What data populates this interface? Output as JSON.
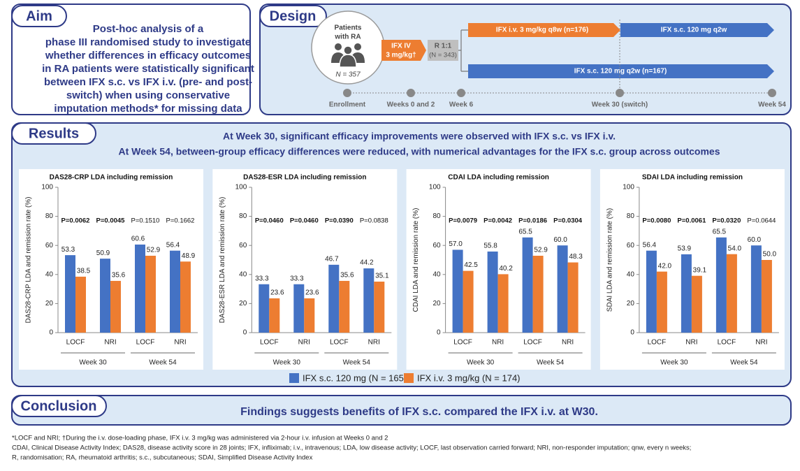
{
  "aim": {
    "heading": "Aim",
    "lines": [
      "Post-hoc analysis of a",
      "phase III randomised study to investigate",
      "whether differences in efficacy outcomes",
      "in RA patients were statistically significant",
      "between IFX s.c. vs IFX i.v. (pre- and post-",
      "switch) when using conservative",
      "imputation methods* for missing data"
    ]
  },
  "design": {
    "heading": "Design",
    "patients": {
      "lines": [
        "Patients",
        "with RA"
      ],
      "n": "N = 357"
    },
    "induction": [
      "IFX IV",
      "3 mg/kg†"
    ],
    "randomisation": [
      "R 1:1",
      "(N = 343)"
    ],
    "arms": [
      "IFX i.v. 3 mg/kg q8w (n=176)",
      "IFX s.c. 120 mg q2w",
      "IFX s.c. 120 mg q2w (n=167)"
    ],
    "timeline": [
      "Enrollment",
      "Weeks 0 and 2",
      "Week 6",
      "Week 30 (switch)",
      "Week 54"
    ]
  },
  "results": {
    "heading": "Results",
    "summary": [
      "At Week 30, significant efficacy improvements were observed with IFX s.c. vs IFX i.v.",
      "At Week 54, between-group efficacy differences were reduced, with numerical advantages for the IFX s.c. group across outcomes"
    ]
  },
  "chart_data": [
    {
      "type": "bar",
      "title": "DAS28-CRP LDA including remission",
      "y_label": "DAS28-CRP LDA and remission rate (%)",
      "categories": [
        "LOCF",
        "NRI",
        "LOCF",
        "NRI"
      ],
      "groups": [
        "Week 30",
        "Week 54"
      ],
      "ylim": [
        0,
        100
      ],
      "yticks": [
        0,
        20,
        40,
        60,
        80,
        100
      ],
      "series": [
        {
          "name": "IFX s.c. 120 mg (N = 165)",
          "color": "#4472c4",
          "values": [
            53.3,
            50.9,
            60.6,
            56.4
          ],
          "value_labels": [
            "53.3",
            "50.9",
            "60.6",
            "56.4"
          ]
        },
        {
          "name": "IFX i.v. 3 mg/kg (N = 174)",
          "color": "#ed7d31",
          "values": [
            38.5,
            35.6,
            52.9,
            48.9
          ],
          "value_labels": [
            "38.5",
            "35.6",
            "52.9",
            "48.9"
          ]
        }
      ],
      "annotations": [
        {
          "text": "P=0.0062",
          "bold": true
        },
        {
          "text": "P=0.0045",
          "bold": true
        },
        {
          "text": "P=0.1510",
          "bold": false
        },
        {
          "text": "P=0.1662",
          "bold": false
        }
      ]
    },
    {
      "type": "bar",
      "title": "DAS28-ESR LDA including remission",
      "y_label": "DAS28-ESR LDA and remission rate (%)",
      "categories": [
        "LOCF",
        "NRI",
        "LOCF",
        "NRI"
      ],
      "groups": [
        "Week 30",
        "Week 54"
      ],
      "ylim": [
        0,
        100
      ],
      "yticks": [
        0,
        20,
        40,
        60,
        80,
        100
      ],
      "series": [
        {
          "color": "#4472c4",
          "values": [
            33.3,
            33.3,
            46.7,
            44.2
          ],
          "value_labels": [
            "33.3",
            "33.3",
            "46.7",
            "44.2"
          ]
        },
        {
          "color": "#ed7d31",
          "values": [
            23.6,
            23.6,
            35.6,
            35.1
          ],
          "value_labels": [
            "23.6",
            "23.6",
            "35.6",
            "35.1"
          ]
        }
      ],
      "annotations": [
        {
          "text": "P=0.0460",
          "bold": true
        },
        {
          "text": "P=0.0460",
          "bold": true
        },
        {
          "text": "P=0.0390",
          "bold": true
        },
        {
          "text": "P=0.0838",
          "bold": false
        }
      ]
    },
    {
      "type": "bar",
      "title": "CDAI LDA including remission",
      "y_label": "CDAI LDA and remission rate (%)",
      "categories": [
        "LOCF",
        "NRI",
        "LOCF",
        "NRI"
      ],
      "groups": [
        "Week 30",
        "Week 54"
      ],
      "ylim": [
        0,
        100
      ],
      "yticks": [
        0,
        20,
        40,
        60,
        80,
        100
      ],
      "series": [
        {
          "color": "#4472c4",
          "values": [
            57.0,
            55.8,
            65.5,
            60.0
          ],
          "value_labels": [
            "57.0",
            "55.8",
            "65.5",
            "60.0"
          ]
        },
        {
          "color": "#ed7d31",
          "values": [
            42.5,
            40.2,
            52.9,
            48.3
          ],
          "value_labels": [
            "42.5",
            "40.2",
            "52.9",
            "48.3"
          ]
        }
      ],
      "annotations": [
        {
          "text": "P=0.0079",
          "bold": true
        },
        {
          "text": "P=0.0042",
          "bold": true
        },
        {
          "text": "P=0.0186",
          "bold": true
        },
        {
          "text": "P=0.0304",
          "bold": true
        }
      ]
    },
    {
      "type": "bar",
      "title": "SDAI LDA including remission",
      "y_label": "SDAI LDA and remission rate (%)",
      "categories": [
        "LOCF",
        "NRI",
        "LOCF",
        "NRI"
      ],
      "groups": [
        "Week 30",
        "Week 54"
      ],
      "ylim": [
        0,
        100
      ],
      "yticks": [
        0,
        20,
        40,
        60,
        80,
        100
      ],
      "series": [
        {
          "color": "#4472c4",
          "values": [
            56.4,
            53.9,
            65.5,
            60.0
          ],
          "value_labels": [
            "56.4",
            "53.9",
            "65.5",
            "60.0"
          ]
        },
        {
          "color": "#ed7d31",
          "values": [
            42.0,
            39.1,
            54.0,
            50.0
          ],
          "value_labels": [
            "42.0",
            "39.1",
            "54.0",
            "50.0"
          ]
        }
      ],
      "annotations": [
        {
          "text": "P=0.0080",
          "bold": true
        },
        {
          "text": "P=0.0061",
          "bold": true
        },
        {
          "text": "P=0.0320",
          "bold": true
        },
        {
          "text": "P=0.0644",
          "bold": false
        }
      ]
    }
  ],
  "conclusion": {
    "heading": "Conclusion",
    "text": "Findings suggests benefits of IFX s.c. compared the IFX i.v. at W30."
  },
  "footnotes": [
    "*LOCF and NRI; †During the i.v. dose-loading phase, IFX i.v. 3 mg/kg was administered via 2-hour i.v. infusion at Weeks 0 and 2",
    "CDAI, Clinical Disease Activity Index; DAS28, disease activity score in 28 joints; IFX, infliximab; i.v., intravenous; LDA, low disease activity; LOCF, last observation carried forward; NRI, non-responder imputation; qnw, every n weeks;",
    "R, randomisation; RA, rheumatoid arthritis; s.c., subcutaneous; SDAI, Simplified Disease Activity Index"
  ]
}
